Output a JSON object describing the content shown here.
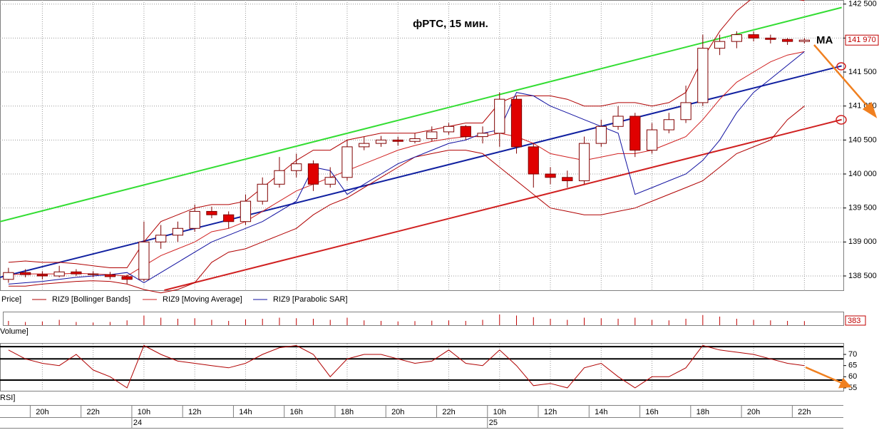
{
  "chart_data": {
    "type": "candlestick",
    "title": "фРТС,  15 мин.",
    "annotation": "MA",
    "price_legend": "Price]",
    "last_price": {
      "value": 141970,
      "label": "141 970"
    },
    "categories": [
      null,
      null,
      "20h",
      null,
      null,
      "22h",
      null,
      null,
      "10h",
      null,
      null,
      "12h",
      null,
      null,
      "14h",
      null,
      null,
      "16h",
      null,
      null,
      "18h",
      null,
      null,
      "20h",
      null,
      null,
      "22h",
      null,
      null,
      "10h",
      null,
      null,
      "12h",
      null,
      null,
      "14h",
      null,
      null,
      "16h",
      null,
      null,
      "18h",
      null,
      null,
      "20h",
      null,
      null,
      "22h"
    ],
    "dates": [
      null,
      null,
      null,
      null,
      null,
      null,
      null,
      null,
      "24",
      null,
      null,
      null,
      null,
      null,
      null,
      null,
      null,
      null,
      null,
      null,
      null,
      null,
      null,
      null,
      null,
      null,
      null,
      null,
      null,
      "25",
      null,
      null,
      null,
      null,
      null,
      null,
      null,
      null,
      null,
      null,
      null,
      null,
      null,
      null,
      null,
      null,
      null,
      null
    ],
    "open": [
      138450,
      138550,
      138520,
      138500,
      138560,
      138530,
      138520,
      138490,
      138450,
      139000,
      139100,
      139200,
      139450,
      139400,
      139300,
      139600,
      139850,
      140050,
      140150,
      139850,
      139950,
      140400,
      140450,
      140500,
      140480,
      140520,
      140620,
      140700,
      140550,
      140600,
      141100,
      140400,
      140000,
      139950,
      139900,
      140450,
      140700,
      140850,
      140350,
      140650,
      140800,
      141050,
      141850,
      141950,
      142050,
      142000,
      141980,
      141950
    ],
    "high": [
      138620,
      138600,
      138570,
      138650,
      138600,
      138570,
      138560,
      138520,
      139300,
      139250,
      139300,
      139550,
      139520,
      139450,
      139700,
      139950,
      140250,
      140300,
      140200,
      140100,
      140500,
      140550,
      140560,
      140550,
      140600,
      140700,
      140750,
      140720,
      140700,
      141200,
      141150,
      140450,
      140100,
      140050,
      140550,
      140800,
      141000,
      140900,
      140750,
      140900,
      141300,
      142050,
      142050,
      142100,
      142100,
      142050,
      142000,
      142000
    ],
    "low": [
      138400,
      138480,
      138450,
      138480,
      138500,
      138480,
      138450,
      138380,
      138420,
      138900,
      139000,
      139150,
      139350,
      139200,
      139250,
      139550,
      139800,
      139950,
      139750,
      139800,
      139900,
      140350,
      140400,
      140420,
      140450,
      140480,
      140580,
      140500,
      140450,
      140400,
      140300,
      139800,
      139850,
      139800,
      139850,
      140400,
      140650,
      140250,
      140300,
      140600,
      140750,
      141000,
      141750,
      141850,
      141950,
      141920,
      141900,
      141920
    ],
    "close": [
      138550,
      138520,
      138500,
      138560,
      138530,
      138520,
      138490,
      138450,
      139000,
      139100,
      139200,
      139450,
      139400,
      139300,
      139600,
      139850,
      140050,
      140150,
      139850,
      139950,
      140400,
      140450,
      140500,
      140480,
      140520,
      140620,
      140700,
      140550,
      140600,
      141100,
      140400,
      140000,
      139950,
      139900,
      140450,
      140700,
      140850,
      140350,
      140650,
      140800,
      141050,
      141850,
      141950,
      142050,
      142000,
      141980,
      141950,
      141970
    ],
    "series": [
      {
        "name": "RIZ9 [Bollinger Bands]",
        "color": "#b00000",
        "upper": [
          138700,
          138720,
          138700,
          138700,
          138680,
          138650,
          138620,
          138620,
          139000,
          139300,
          139400,
          139500,
          139550,
          139550,
          139600,
          139800,
          140000,
          140200,
          140350,
          140350,
          140500,
          140550,
          140600,
          140600,
          140600,
          140650,
          140700,
          140750,
          140750,
          141050,
          141150,
          141150,
          141150,
          141100,
          141000,
          141000,
          141050,
          141050,
          141000,
          141050,
          141200,
          141700,
          142100,
          142400,
          142600,
          142650,
          142600,
          142550
        ],
        "lower": [
          138350,
          138350,
          138380,
          138400,
          138420,
          138430,
          138420,
          138380,
          138300,
          138250,
          138300,
          138400,
          138700,
          138850,
          138900,
          139000,
          139100,
          139200,
          139400,
          139550,
          139650,
          139800,
          139950,
          140100,
          140250,
          140300,
          140350,
          140350,
          140300,
          140100,
          139900,
          139700,
          139500,
          139450,
          139400,
          139400,
          139450,
          139500,
          139600,
          139700,
          139800,
          139900,
          140100,
          140300,
          140400,
          140500,
          140800,
          141000
        ]
      },
      {
        "name": "RIZ9 [Moving Average]",
        "color": "#d02020",
        "values": [
          138520,
          138530,
          138530,
          138530,
          138540,
          138530,
          138520,
          138500,
          138650,
          138800,
          138900,
          139000,
          139150,
          139200,
          139300,
          139450,
          139600,
          139750,
          139850,
          139950,
          140050,
          140150,
          140250,
          140350,
          140420,
          140480,
          140520,
          140550,
          140550,
          140600,
          140550,
          140450,
          140300,
          140250,
          140200,
          140250,
          140300,
          140300,
          140350,
          140450,
          140550,
          140800,
          141100,
          141350,
          141500,
          141650,
          141750,
          141800
        ]
      },
      {
        "name": "RIZ9 [Parabolic SAR]",
        "color": "#1010a0",
        "values": [
          138380,
          138400,
          138420,
          138450,
          138480,
          138500,
          138520,
          138550,
          138400,
          138550,
          138700,
          138850,
          139000,
          139100,
          139200,
          139300,
          139450,
          139600,
          140100,
          140050,
          139700,
          139850,
          140000,
          140150,
          140250,
          140350,
          140450,
          140500,
          140600,
          140650,
          141200,
          141150,
          141000,
          140900,
          140800,
          140700,
          140600,
          139700,
          139800,
          139900,
          140000,
          140200,
          140500,
          140900,
          141200,
          141400,
          141600,
          141800
        ]
      }
    ],
    "trendlines": [
      {
        "color": "#33dd33",
        "points": [
          [
            -0.5,
            139300
          ],
          [
            49.2,
            142450
          ]
        ]
      },
      {
        "color": "#1020a0",
        "points": [
          [
            -0.5,
            138480
          ],
          [
            49.2,
            141590
          ]
        ]
      },
      {
        "color": "#d02020",
        "points": [
          [
            9.2,
            138290
          ],
          [
            49.2,
            140800
          ]
        ]
      }
    ],
    "xlim": [
      -0.5,
      49.3
    ],
    "ylim": [
      138290,
      142560
    ],
    "yticks": [
      {
        "value": 138500,
        "label": "138 500"
      },
      {
        "value": 139000,
        "label": "139 000"
      },
      {
        "value": 139500,
        "label": "139 500"
      },
      {
        "value": 140000,
        "label": "140 000"
      },
      {
        "value": 140500,
        "label": "140 500"
      },
      {
        "value": 141000,
        "label": "141 000"
      },
      {
        "value": 141500,
        "label": "141 500"
      },
      {
        "value": 142000,
        "label": "142 000"
      },
      {
        "value": 142500,
        "label": "142 500"
      }
    ],
    "volume": {
      "label": "Volume]",
      "ylim": [
        0,
        1200
      ],
      "values": [
        400,
        300,
        350,
        500,
        300,
        250,
        300,
        450,
        900,
        700,
        600,
        650,
        500,
        400,
        550,
        600,
        700,
        650,
        600,
        500,
        700,
        450,
        400,
        350,
        380,
        420,
        450,
        400,
        500,
        1000,
        900,
        750,
        600,
        500,
        700,
        650,
        600,
        700,
        500,
        450,
        600,
        950,
        800,
        600,
        500,
        450,
        400,
        383
      ]
    },
    "rsi": {
      "label": "RSI]",
      "ylim": [
        53.7,
        74.8
      ],
      "yticks": [
        55,
        60,
        65,
        70
      ],
      "levels": [
        73.5,
        68,
        58.5
      ],
      "values": [
        72,
        68,
        66,
        65,
        70,
        63,
        60,
        55,
        74,
        70,
        67,
        66,
        65,
        64,
        66,
        70,
        73,
        74,
        70,
        60,
        68,
        70,
        70,
        68,
        66,
        67,
        72,
        66,
        65,
        72,
        65,
        56,
        57,
        55,
        64,
        66,
        60,
        55,
        60,
        60,
        64,
        74,
        72,
        71,
        70,
        68,
        66,
        65
      ]
    },
    "grid": true
  }
}
